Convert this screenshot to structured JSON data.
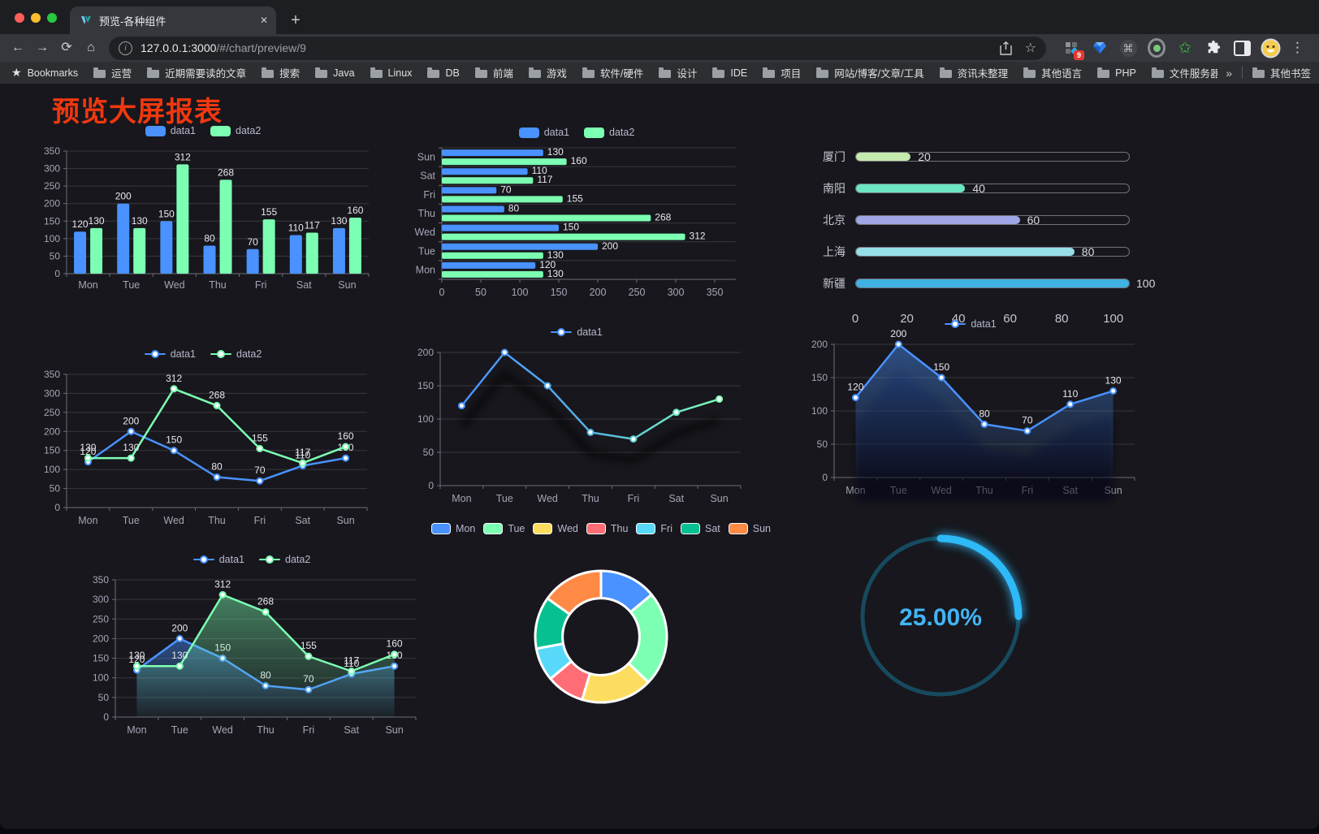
{
  "browser": {
    "tab_title": "预览-各种组件",
    "close_symbol": "✕",
    "new_tab_symbol": "+",
    "url_host": "127.0.0.1:3000",
    "url_path": "/#/chart/preview/9",
    "star_symbol": "☆",
    "extension_badge": "9",
    "bookmarks_label": "Bookmarks",
    "bookmarks": [
      "运营",
      "近期需要读的文章",
      "搜索",
      "Java",
      "Linux",
      "DB",
      "前端",
      "游戏",
      "软件/硬件",
      "设计",
      "IDE",
      "项目",
      "网站/博客/文章/工具",
      "资讯未整理",
      "其他语言",
      "PHP",
      "文件服务器"
    ],
    "overflow_symbol": "»",
    "other_bookmarks_label": "其他书签",
    "menu_symbol": "⋮"
  },
  "page": {
    "title": "预览大屏报表"
  },
  "theme": {
    "title_red": "#f0380f",
    "axis_text": "#a6a5b5",
    "value_label": "#e8e8ee",
    "grid_line": "rgba(255,255,255,0.14)",
    "axis_line": "#6e6d7a",
    "legend_text": "#b9b8ce"
  },
  "chart_data": [
    {
      "container": "chart-bar",
      "type": "bar",
      "legend": "rect",
      "labels": true,
      "categories": [
        "Mon",
        "Tue",
        "Wed",
        "Thu",
        "Fri",
        "Sat",
        "Sun"
      ],
      "series": [
        {
          "name": "data1",
          "color": "#4992ff",
          "values": [
            120,
            200,
            150,
            80,
            70,
            110,
            130
          ]
        },
        {
          "name": "data2",
          "color": "#7cffb2",
          "values": [
            130,
            130,
            312,
            268,
            155,
            117,
            160
          ]
        }
      ],
      "ylim": [
        0,
        350
      ],
      "yticks": [
        0,
        50,
        100,
        150,
        200,
        250,
        300,
        350
      ]
    },
    {
      "container": "chart-hbar",
      "type": "hbar",
      "legend": "rect",
      "labels": true,
      "categories": [
        "Mon",
        "Tue",
        "Wed",
        "Thu",
        "Fri",
        "Sat",
        "Sun"
      ],
      "series": [
        {
          "name": "data1",
          "color": "#4992ff",
          "values": [
            120,
            200,
            150,
            80,
            70,
            110,
            130
          ]
        },
        {
          "name": "data2",
          "color": "#7cffb2",
          "values": [
            130,
            130,
            312,
            268,
            155,
            117,
            160
          ]
        }
      ],
      "xlim": [
        0,
        350
      ],
      "xticks": [
        0,
        50,
        100,
        150,
        200,
        250,
        300,
        350
      ]
    },
    {
      "container": "chart-progress",
      "type": "progress",
      "items": [
        {
          "label": "厦门",
          "value": 20,
          "color": "#c4ebad"
        },
        {
          "label": "南阳",
          "value": 40,
          "color": "#6be6c1"
        },
        {
          "label": "北京",
          "value": 60,
          "color": "#a0a7e6"
        },
        {
          "label": "上海",
          "value": 80,
          "color": "#96dee8"
        },
        {
          "label": "新疆",
          "value": 100,
          "color": "#3fb1e3"
        }
      ],
      "xlim": [
        0,
        100
      ],
      "xticks": [
        0,
        20,
        40,
        60,
        80,
        100
      ]
    },
    {
      "container": "chart-line2",
      "type": "line",
      "legend": "line",
      "labels": true,
      "categories": [
        "Mon",
        "Tue",
        "Wed",
        "Thu",
        "Fri",
        "Sat",
        "Sun"
      ],
      "series": [
        {
          "name": "data1",
          "color": "#4992ff",
          "values": [
            120,
            200,
            150,
            80,
            70,
            110,
            130
          ]
        },
        {
          "name": "data2",
          "color": "#7cffb2",
          "values": [
            130,
            130,
            312,
            268,
            155,
            117,
            160
          ]
        }
      ],
      "ylim": [
        0,
        350
      ],
      "yticks": [
        0,
        50,
        100,
        150,
        200,
        250,
        300,
        350
      ]
    },
    {
      "container": "chart-linegrad",
      "type": "line",
      "legend": "line",
      "labels": false,
      "shadow": true,
      "categories": [
        "Mon",
        "Tue",
        "Wed",
        "Thu",
        "Fri",
        "Sat",
        "Sun"
      ],
      "series": [
        {
          "name": "data1",
          "color": "#4992ff",
          "gradient": [
            "#4992ff",
            "#55b1e0",
            "#7cffb2"
          ],
          "values": [
            120,
            200,
            150,
            80,
            70,
            110,
            130
          ]
        }
      ],
      "ylim": [
        0,
        200
      ],
      "yticks": [
        0,
        50,
        100,
        150,
        200
      ]
    },
    {
      "container": "chart-area1",
      "type": "area",
      "legend": "line",
      "labels": true,
      "shadow": true,
      "categories": [
        "Mon",
        "Tue",
        "Wed",
        "Thu",
        "Fri",
        "Sat",
        "Sun"
      ],
      "series": [
        {
          "name": "data1",
          "color": "#4992ff",
          "values": [
            120,
            200,
            150,
            80,
            70,
            110,
            130
          ]
        }
      ],
      "ylim": [
        0,
        200
      ],
      "yticks": [
        0,
        50,
        100,
        150,
        200
      ]
    },
    {
      "container": "chart-area2",
      "type": "area",
      "legend": "line",
      "labels": true,
      "categories": [
        "Mon",
        "Tue",
        "Wed",
        "Thu",
        "Fri",
        "Sat",
        "Sun"
      ],
      "series": [
        {
          "name": "data1",
          "color": "#4992ff",
          "values": [
            120,
            200,
            150,
            80,
            70,
            110,
            130
          ]
        },
        {
          "name": "data2",
          "color": "#7cffb2",
          "values": [
            130,
            130,
            312,
            268,
            155,
            117,
            160
          ]
        }
      ],
      "ylim": [
        0,
        350
      ],
      "yticks": [
        0,
        50,
        100,
        150,
        200,
        250,
        300,
        350
      ]
    },
    {
      "container": "chart-donut",
      "type": "pie",
      "legend": "rect-border",
      "categories": [
        "Mon",
        "Tue",
        "Wed",
        "Thu",
        "Fri",
        "Sat",
        "Sun"
      ],
      "values": [
        120,
        200,
        150,
        80,
        70,
        110,
        130
      ],
      "colors": [
        "#4992ff",
        "#7cffb2",
        "#fddd60",
        "#ff6e76",
        "#58d9f9",
        "#05c091",
        "#ff8a45"
      ],
      "inner_ratio": 0.585
    },
    {
      "container": "chart-gauge",
      "type": "gauge",
      "value_percent": 25,
      "label": "25.00%",
      "progress_color": "#2eb9f7",
      "track_color": "#174a5e",
      "text_color": "#41b4f4"
    }
  ]
}
